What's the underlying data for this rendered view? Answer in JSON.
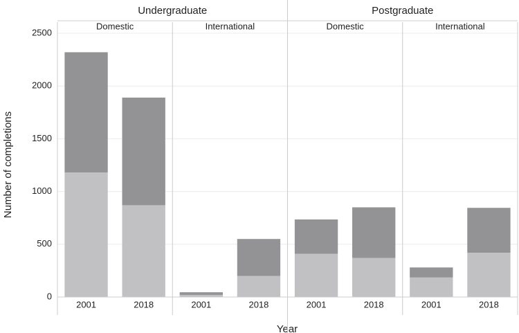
{
  "chart_data": {
    "type": "bar",
    "stacked": true,
    "ylabel": "Number of completions",
    "xlabel": "Year",
    "ylim": [
      0,
      2500
    ],
    "yticks": [
      0,
      500,
      1000,
      1500,
      2000,
      2500
    ],
    "grid": true,
    "groups": [
      {
        "title": "Undergraduate",
        "panels": [
          {
            "title": "Domestic",
            "categories": [
              "2001",
              "2018"
            ],
            "series": [
              {
                "color": "#c1c1c3",
                "values": [
                  1180,
                  870
                ]
              },
              {
                "color": "#939396",
                "values": [
                  1140,
                  1020
                ]
              }
            ]
          },
          {
            "title": "International",
            "categories": [
              "2001",
              "2018"
            ],
            "series": [
              {
                "color": "#c1c1c3",
                "values": [
                  20,
                  200
                ]
              },
              {
                "color": "#939396",
                "values": [
                  25,
                  350
                ]
              }
            ]
          }
        ]
      },
      {
        "title": "Postgraduate",
        "panels": [
          {
            "title": "Domestic",
            "categories": [
              "2001",
              "2018"
            ],
            "series": [
              {
                "color": "#c1c1c3",
                "values": [
                  410,
                  370
                ]
              },
              {
                "color": "#939396",
                "values": [
                  325,
                  480
                ]
              }
            ]
          },
          {
            "title": "International",
            "categories": [
              "2001",
              "2018"
            ],
            "series": [
              {
                "color": "#c1c1c3",
                "values": [
                  185,
                  420
                ]
              },
              {
                "color": "#939396",
                "values": [
                  95,
                  425
                ]
              }
            ]
          }
        ]
      }
    ]
  }
}
